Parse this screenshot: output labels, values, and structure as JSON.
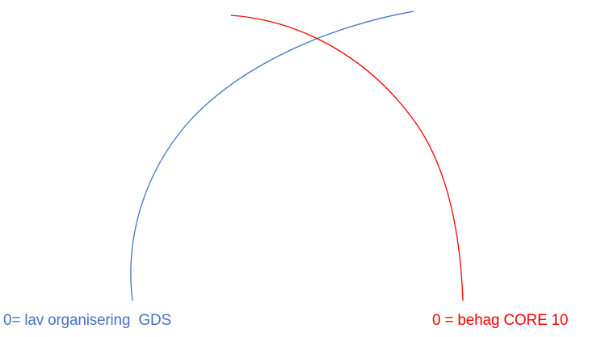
{
  "curves": [
    {
      "key": "blue",
      "color": "#4472C4",
      "label": "0= lav organisering  GDS"
    },
    {
      "key": "red",
      "color": "#FF0000",
      "label": "0 = behag CORE 10"
    }
  ]
}
